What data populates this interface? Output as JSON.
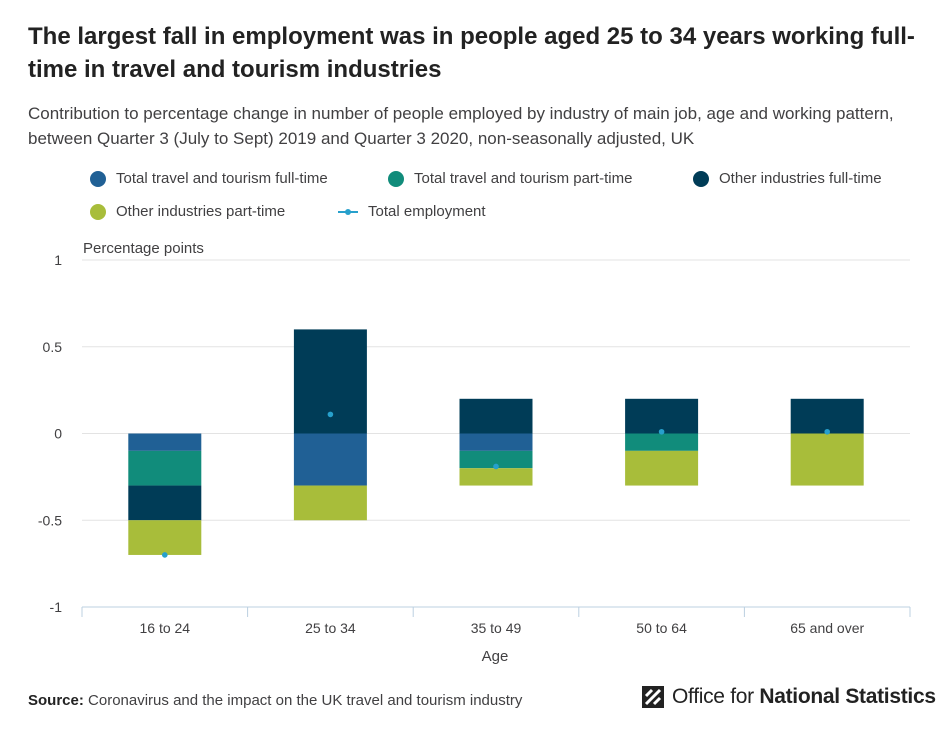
{
  "header": {
    "title": "The largest fall in employment was in people aged 25 to 34 years working full-time in travel and tourism industries",
    "subtitle": "Contribution to percentage change in number of people employed by industry of main job, age and working pattern, between Quarter 3 (July to Sept) 2019 and Quarter 3 2020, non-seasonally adjusted, UK"
  },
  "legend": {
    "items": [
      {
        "label": "Total travel and tourism full-time",
        "color": "#206095"
      },
      {
        "label": "Total travel and tourism part-time",
        "color": "#118c7b"
      },
      {
        "label": "Other industries full-time",
        "color": "#003c57"
      },
      {
        "label": "Other industries part-time",
        "color": "#a8bd3a"
      },
      {
        "label": "Total employment",
        "color": "#27a0cc"
      }
    ]
  },
  "chart_data": {
    "type": "bar",
    "stacked": true,
    "categories": [
      "16 to 24",
      "25 to 34",
      "35 to 49",
      "50 to 64",
      "65 and over"
    ],
    "xlabel": "Age",
    "ylabel": "Percentage points",
    "ylim": [
      -1,
      1
    ],
    "yticks": [
      1,
      0.5,
      0,
      -0.5,
      -1
    ],
    "ytick_labels": [
      "1",
      "0.5",
      "0",
      "-0.5",
      "-1"
    ],
    "grid": true,
    "series": [
      {
        "name": "Total travel and tourism full-time",
        "color": "#206095",
        "values": [
          -0.1,
          -0.3,
          -0.1,
          0,
          0
        ]
      },
      {
        "name": "Total travel and tourism part-time",
        "color": "#118c7b",
        "values": [
          -0.2,
          0,
          -0.1,
          -0.1,
          0
        ]
      },
      {
        "name": "Other industries full-time",
        "color": "#003c57",
        "values": [
          -0.2,
          0.6,
          0.2,
          0.2,
          0.2
        ]
      },
      {
        "name": "Other industries part-time",
        "color": "#a8bd3a",
        "values": [
          -0.2,
          -0.2,
          -0.1,
          -0.2,
          -0.3
        ]
      }
    ],
    "line_series": {
      "name": "Total employment",
      "color": "#27a0cc",
      "values": [
        -0.7,
        0.11,
        -0.19,
        0.01,
        0.01
      ]
    }
  },
  "footer": {
    "source_label": "Source:",
    "source_text": "Coronavirus and the impact on the UK travel and tourism industry",
    "logo_text_regular": "Office for ",
    "logo_text_bold": "National Statistics"
  }
}
